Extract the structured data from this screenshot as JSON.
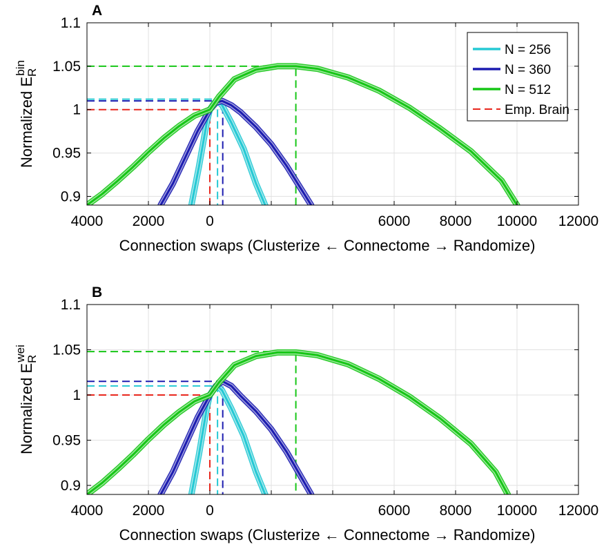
{
  "legend": [
    {
      "label": "N = 256",
      "color": "#26c9d4",
      "style": "solid"
    },
    {
      "label": "N = 360",
      "color": "#1c1cb0",
      "style": "solid"
    },
    {
      "label": "N = 512",
      "color": "#16c616",
      "style": "solid"
    },
    {
      "label": "Emp. Brain",
      "color": "#e8261c",
      "style": "dashed"
    }
  ],
  "chart_data": [
    {
      "panel": "A",
      "type": "line",
      "ylabel": "Normalized E_R^bin",
      "ylabel_main": "Normalized E",
      "ylabel_sup": "bin",
      "ylabel_sub": "R",
      "xlabel": "Connection swaps (Clusterize ← Connectome → Randomize)",
      "xlim": [
        -4000,
        12000
      ],
      "ylim": [
        0.89,
        1.1
      ],
      "xticks": [
        -4000,
        -2000,
        0,
        2000,
        4000,
        6000,
        8000,
        10000,
        12000
      ],
      "xtick_labels": [
        "4000",
        "2000",
        "0",
        "",
        "",
        "6000",
        "8000",
        "10000",
        "12000"
      ],
      "yticks": [
        0.9,
        0.95,
        1,
        1.05,
        1.1
      ],
      "ytick_labels": [
        "0.9",
        "0.95",
        "1",
        "1.05",
        "1.1"
      ],
      "grid": true,
      "legend_position": "top-right",
      "series": [
        {
          "name": "N = 256",
          "color": "#26c9d4",
          "x": [
            -600,
            -350,
            -100,
            0,
            150,
            250,
            400,
            700,
            1100,
            1500,
            1800
          ],
          "y": [
            0.89,
            0.935,
            0.985,
            1.0,
            1.008,
            1.01,
            1.005,
            0.985,
            0.955,
            0.915,
            0.89
          ]
        },
        {
          "name": "N = 360",
          "color": "#1c1cb0",
          "x": [
            -1600,
            -1200,
            -800,
            -400,
            0,
            200,
            400,
            700,
            1000,
            1500,
            2000,
            2500,
            3300
          ],
          "y": [
            0.89,
            0.915,
            0.945,
            0.975,
            1.0,
            1.008,
            1.01,
            1.005,
            0.997,
            0.98,
            0.96,
            0.935,
            0.89
          ]
        },
        {
          "name": "N = 512",
          "color": "#16c616",
          "x": [
            -4000,
            -3500,
            -3000,
            -2500,
            -2000,
            -1500,
            -1000,
            -500,
            0,
            300,
            800,
            1500,
            2200,
            2800,
            3500,
            4500,
            5500,
            6500,
            7500,
            8500,
            9500,
            10000
          ],
          "y": [
            0.89,
            0.903,
            0.918,
            0.934,
            0.951,
            0.967,
            0.981,
            0.993,
            1.0,
            1.015,
            1.035,
            1.046,
            1.05,
            1.05,
            1.047,
            1.037,
            1.022,
            1.002,
            0.978,
            0.952,
            0.918,
            0.89
          ]
        }
      ],
      "reference_lines": [
        {
          "name": "N = 512",
          "color": "#16c616",
          "x": 2800,
          "y": 1.05
        },
        {
          "name": "N = 256",
          "color": "#26c9d4",
          "x": 250,
          "y": 1.012
        },
        {
          "name": "N = 360",
          "color": "#1c1cb0",
          "x": 420,
          "y": 1.01
        },
        {
          "name": "Emp. Brain",
          "color": "#e8261c",
          "x": 0,
          "y": 1.0
        }
      ]
    },
    {
      "panel": "B",
      "type": "line",
      "ylabel": "Normalized E_R^wei",
      "ylabel_main": "Normalized E",
      "ylabel_sup": "wei",
      "ylabel_sub": "R",
      "xlabel": "Connection swaps (Clusterize ← Connectome → Randomize)",
      "xlim": [
        -4000,
        12000
      ],
      "ylim": [
        0.89,
        1.1
      ],
      "xticks": [
        -4000,
        -2000,
        0,
        2000,
        4000,
        6000,
        8000,
        10000,
        12000
      ],
      "xtick_labels": [
        "4000",
        "2000",
        "0",
        "",
        "",
        "6000",
        "8000",
        "10000",
        "12000"
      ],
      "yticks": [
        0.9,
        0.95,
        1,
        1.05,
        1.1
      ],
      "ytick_labels": [
        "0.9",
        "0.95",
        "1",
        "1.05",
        "1.1"
      ],
      "grid": true,
      "legend_position": "none",
      "series": [
        {
          "name": "N = 256",
          "color": "#26c9d4",
          "x": [
            -600,
            -350,
            -100,
            0,
            150,
            250,
            400,
            700,
            1100,
            1500,
            1800
          ],
          "y": [
            0.89,
            0.935,
            0.985,
            1.0,
            1.008,
            1.01,
            1.005,
            0.985,
            0.955,
            0.915,
            0.89
          ]
        },
        {
          "name": "N = 360",
          "color": "#1c1cb0",
          "x": [
            -1600,
            -1200,
            -800,
            -400,
            0,
            200,
            420,
            700,
            1000,
            1500,
            2000,
            2500,
            3300
          ],
          "y": [
            0.89,
            0.915,
            0.945,
            0.975,
            1.0,
            1.01,
            1.015,
            1.01,
            0.999,
            0.982,
            0.962,
            0.937,
            0.89
          ]
        },
        {
          "name": "N = 512",
          "color": "#16c616",
          "x": [
            -4000,
            -3500,
            -3000,
            -2500,
            -2000,
            -1500,
            -1000,
            -500,
            0,
            300,
            800,
            1500,
            2200,
            2800,
            3500,
            4500,
            5500,
            6500,
            7500,
            8500,
            9300,
            9700
          ],
          "y": [
            0.89,
            0.903,
            0.918,
            0.934,
            0.951,
            0.967,
            0.981,
            0.993,
            1.0,
            1.014,
            1.033,
            1.043,
            1.047,
            1.047,
            1.044,
            1.034,
            1.018,
            0.998,
            0.974,
            0.946,
            0.915,
            0.89
          ]
        }
      ],
      "reference_lines": [
        {
          "name": "N = 512",
          "color": "#16c616",
          "x": 2800,
          "y": 1.048
        },
        {
          "name": "N = 256",
          "color": "#26c9d4",
          "x": 250,
          "y": 1.01
        },
        {
          "name": "N = 360",
          "color": "#1c1cb0",
          "x": 420,
          "y": 1.015
        },
        {
          "name": "Emp. Brain",
          "color": "#e8261c",
          "x": 0,
          "y": 1.0
        }
      ]
    }
  ]
}
